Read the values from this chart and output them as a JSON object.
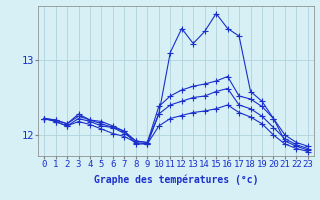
{
  "xlabel": "Graphe des températures (°c)",
  "background_color": "#d6f0f5",
  "grid_color": "#aacdd8",
  "line_color": "#1a2fcc",
  "xlim": [
    -0.5,
    23.5
  ],
  "ylim": [
    11.72,
    13.72
  ],
  "xticks": [
    0,
    1,
    2,
    3,
    4,
    5,
    6,
    7,
    8,
    9,
    10,
    11,
    12,
    13,
    14,
    15,
    16,
    17,
    18,
    19,
    20,
    21,
    22,
    23
  ],
  "yticks": [
    12,
    13
  ],
  "lines": [
    {
      "x": [
        0,
        1,
        2,
        3,
        4,
        5,
        6,
        7,
        8,
        9,
        10,
        11,
        12,
        13,
        14,
        15,
        16,
        17,
        18,
        19,
        20,
        21,
        22,
        23
      ],
      "y": [
        12.22,
        12.2,
        12.15,
        12.28,
        12.2,
        12.18,
        12.12,
        12.05,
        11.88,
        11.88,
        12.28,
        13.1,
        13.42,
        13.22,
        13.38,
        13.62,
        13.42,
        13.32,
        12.58,
        12.45,
        12.22,
        11.92,
        11.85,
        11.8
      ]
    },
    {
      "x": [
        0,
        1,
        2,
        3,
        4,
        5,
        6,
        7,
        8,
        9,
        10,
        11,
        12,
        13,
        14,
        15,
        16,
        17,
        18,
        19,
        20,
        21,
        22,
        23
      ],
      "y": [
        12.22,
        12.2,
        12.15,
        12.25,
        12.2,
        12.15,
        12.1,
        12.05,
        11.92,
        11.9,
        12.38,
        12.52,
        12.6,
        12.65,
        12.68,
        12.72,
        12.78,
        12.52,
        12.48,
        12.38,
        12.22,
        12.0,
        11.9,
        11.85
      ]
    },
    {
      "x": [
        0,
        1,
        2,
        3,
        4,
        5,
        6,
        7,
        8,
        9,
        10,
        11,
        12,
        13,
        14,
        15,
        16,
        17,
        18,
        19,
        20,
        21,
        22,
        23
      ],
      "y": [
        12.22,
        12.18,
        12.12,
        12.22,
        12.18,
        12.12,
        12.1,
        12.02,
        11.92,
        11.9,
        12.28,
        12.4,
        12.45,
        12.5,
        12.52,
        12.58,
        12.62,
        12.4,
        12.35,
        12.25,
        12.1,
        11.95,
        11.87,
        11.82
      ]
    },
    {
      "x": [
        0,
        1,
        2,
        3,
        4,
        5,
        6,
        7,
        8,
        9,
        10,
        11,
        12,
        13,
        14,
        15,
        16,
        17,
        18,
        19,
        20,
        21,
        22,
        23
      ],
      "y": [
        12.22,
        12.18,
        12.12,
        12.18,
        12.14,
        12.08,
        12.02,
        11.98,
        11.9,
        11.88,
        12.12,
        12.22,
        12.26,
        12.3,
        12.32,
        12.35,
        12.4,
        12.3,
        12.24,
        12.15,
        12.0,
        11.88,
        11.82,
        11.78
      ]
    }
  ],
  "marker": "+",
  "markersize": 4,
  "linewidth": 0.8,
  "xlabel_fontsize": 7,
  "tick_fontsize": 6.5
}
